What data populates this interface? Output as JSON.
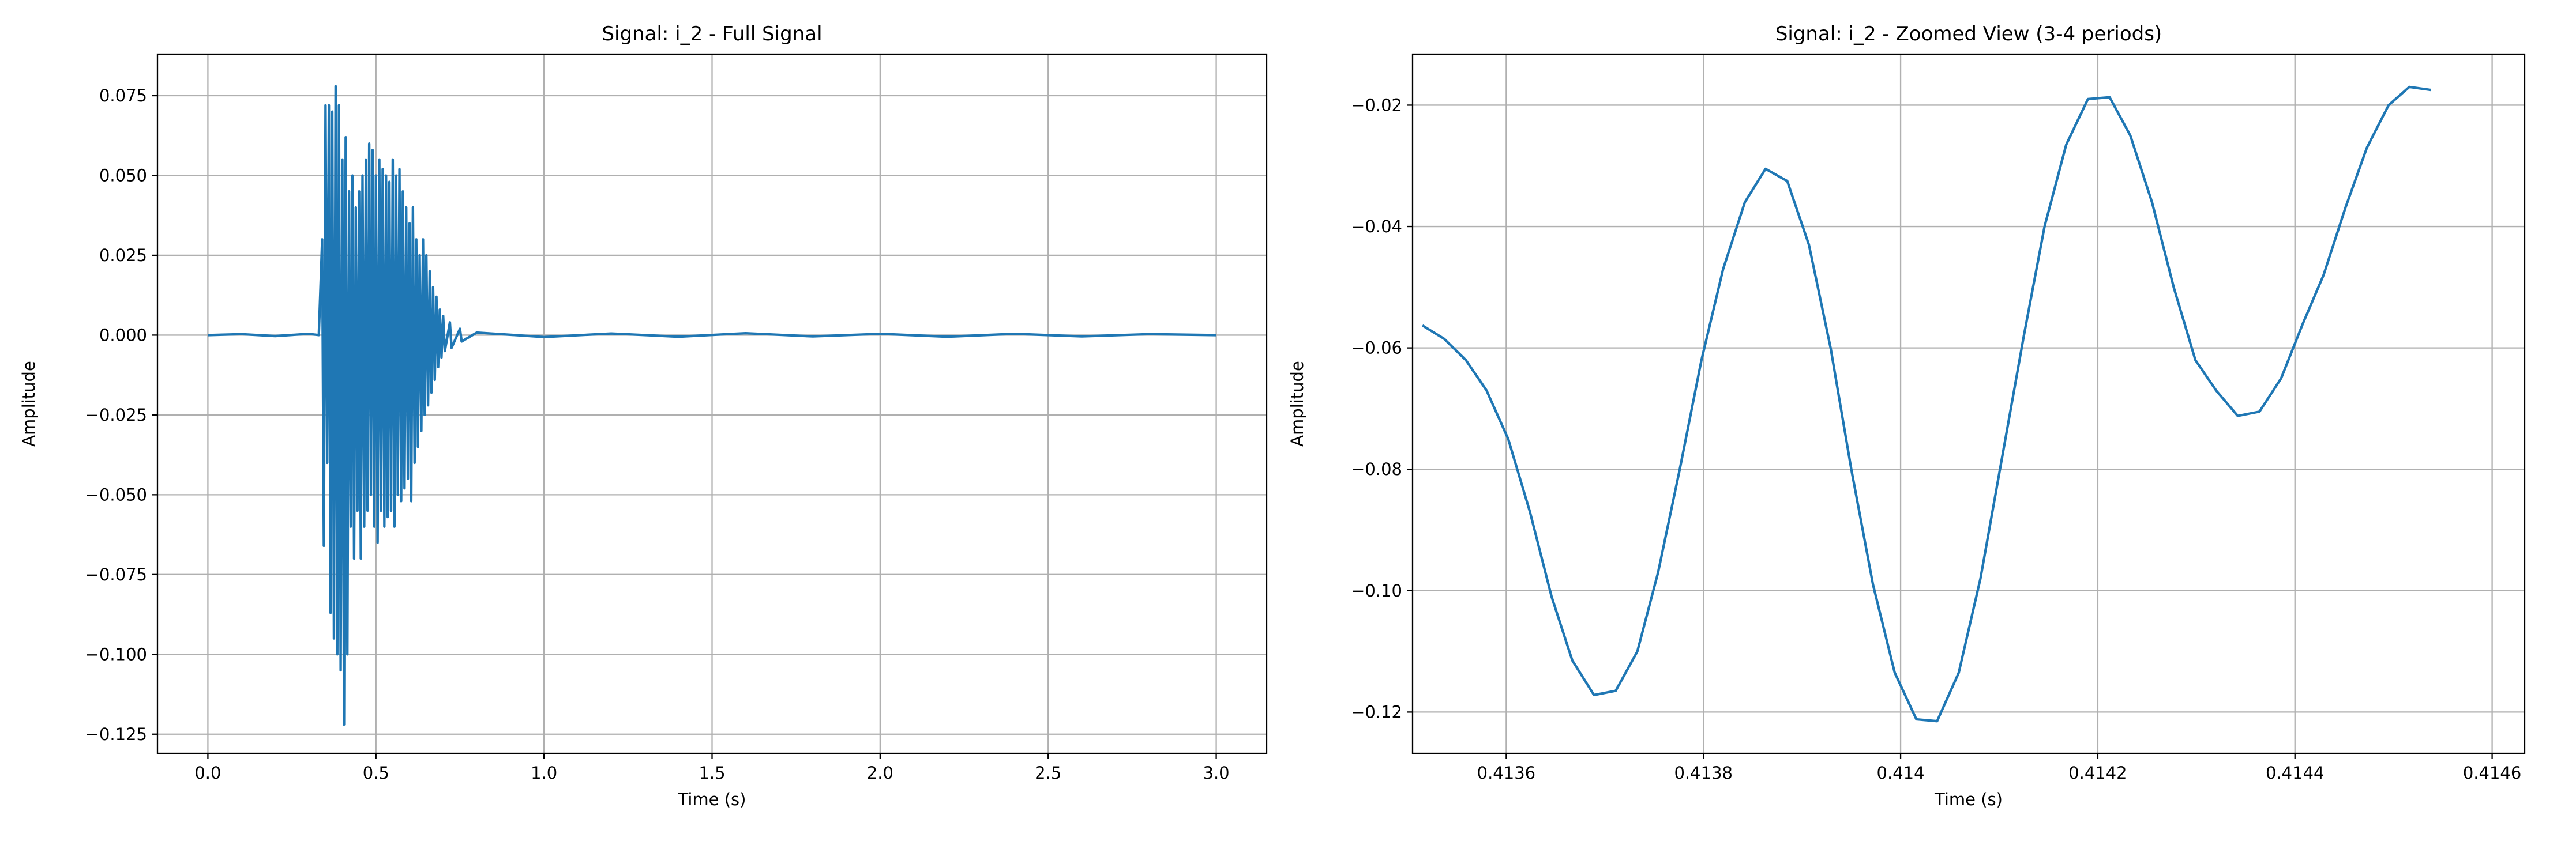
{
  "chart_data": [
    {
      "type": "line",
      "title": "Signal: i_2 - Full Signal",
      "xlabel": "Time (s)",
      "ylabel": "Amplitude",
      "xlim": [
        -0.15,
        3.15
      ],
      "ylim": [
        -0.131,
        0.088
      ],
      "grid": true,
      "xticks": [
        {
          "value": 0,
          "label": "0.0"
        },
        0.5,
        {
          "value": 1,
          "label": "1.0"
        },
        1.5,
        {
          "value": 2,
          "label": "2.0"
        },
        2.5,
        {
          "value": 3,
          "label": "3.0"
        }
      ],
      "yticks": [
        {
          "value": -0.125,
          "label": "−0.125"
        },
        {
          "value": -0.1,
          "label": "−0.100"
        },
        {
          "value": -0.075,
          "label": "−0.075"
        },
        {
          "value": -0.05,
          "label": "−0.050"
        },
        {
          "value": -0.025,
          "label": "−0.025"
        },
        {
          "value": 0,
          "label": "0.000"
        },
        0.025,
        {
          "value": 0.05,
          "label": "0.050"
        },
        0.075
      ],
      "x": [
        0,
        0.1,
        0.2,
        0.3,
        0.33,
        0.34,
        0.345,
        0.35,
        0.355,
        0.36,
        0.365,
        0.37,
        0.375,
        0.38,
        0.385,
        0.39,
        0.395,
        0.4,
        0.405,
        0.41,
        0.415,
        0.42,
        0.425,
        0.43,
        0.435,
        0.44,
        0.445,
        0.45,
        0.455,
        0.46,
        0.465,
        0.47,
        0.475,
        0.48,
        0.485,
        0.49,
        0.495,
        0.5,
        0.505,
        0.51,
        0.515,
        0.52,
        0.525,
        0.53,
        0.535,
        0.54,
        0.545,
        0.55,
        0.555,
        0.56,
        0.565,
        0.57,
        0.575,
        0.58,
        0.585,
        0.59,
        0.595,
        0.6,
        0.605,
        0.61,
        0.615,
        0.62,
        0.625,
        0.63,
        0.635,
        0.64,
        0.645,
        0.65,
        0.655,
        0.66,
        0.665,
        0.67,
        0.675,
        0.68,
        0.685,
        0.69,
        0.695,
        0.7,
        0.705,
        0.72,
        0.725,
        0.75,
        0.755,
        0.8,
        1.0,
        1.2,
        1.4,
        1.6,
        1.8,
        2.0,
        2.2,
        2.4,
        2.6,
        2.8,
        3.0
      ],
      "series": [
        {
          "name": "i_2",
          "color": "#1f77b4",
          "values": [
            0,
            0.0003,
            -0.0003,
            0.0004,
            0,
            0.03,
            -0.066,
            0.072,
            -0.04,
            0.072,
            -0.087,
            0.07,
            -0.095,
            0.078,
            -0.1,
            0.072,
            -0.105,
            0.055,
            -0.122,
            0.062,
            -0.1,
            0.045,
            -0.06,
            0.05,
            -0.07,
            0.04,
            -0.055,
            0.045,
            -0.07,
            0.05,
            -0.06,
            0.055,
            -0.055,
            0.06,
            -0.05,
            0.058,
            -0.06,
            0.05,
            -0.065,
            0.055,
            -0.055,
            0.052,
            -0.06,
            0.05,
            -0.057,
            0.048,
            -0.055,
            0.055,
            -0.06,
            0.05,
            -0.05,
            0.052,
            -0.052,
            0.045,
            -0.048,
            0.04,
            -0.045,
            0.035,
            -0.052,
            0.04,
            -0.04,
            0.03,
            -0.035,
            0.025,
            -0.03,
            0.03,
            -0.025,
            0.025,
            -0.022,
            0.02,
            -0.018,
            0.015,
            -0.014,
            0.012,
            -0.01,
            0.008,
            -0.007,
            0.006,
            -0.005,
            0.004,
            -0.004,
            0.002,
            -0.002,
            0.0008,
            -0.0006,
            0.0005,
            -0.0005,
            0.0006,
            -0.0004,
            0.0004,
            -0.0005,
            0.0004,
            -0.0004,
            0.0003,
            0
          ]
        }
      ]
    },
    {
      "type": "line",
      "title": "Signal: i_2 - Zoomed View (3-4 periods)",
      "xlabel": "Time (s)",
      "ylabel": "Amplitude",
      "xlim": [
        0.413505,
        0.414633
      ],
      "ylim": [
        -0.1268,
        -0.0116
      ],
      "grid": true,
      "xticks": [
        0.4136,
        0.4138,
        0.414,
        0.4142,
        0.4144,
        0.4146
      ],
      "yticks": [
        {
          "value": -0.12,
          "label": "−0.12"
        },
        {
          "value": -0.1,
          "label": "−0.10"
        },
        {
          "value": -0.08,
          "label": "−0.08"
        },
        {
          "value": -0.06,
          "label": "−0.06"
        },
        {
          "value": -0.04,
          "label": "−0.04"
        },
        {
          "value": -0.02,
          "label": "−0.02"
        }
      ],
      "x": [
        0.413515,
        0.413537,
        0.413559,
        0.41358,
        0.413602,
        0.413624,
        0.413646,
        0.413667,
        0.413689,
        0.413711,
        0.413733,
        0.413754,
        0.413776,
        0.413798,
        0.41382,
        0.413842,
        0.413863,
        0.413885,
        0.413907,
        0.413929,
        0.41395,
        0.413972,
        0.413994,
        0.414016,
        0.414037,
        0.414059,
        0.414081,
        0.414103,
        0.414125,
        0.414146,
        0.414168,
        0.41419,
        0.414212,
        0.414233,
        0.414255,
        0.414277,
        0.414299,
        0.41432,
        0.414342,
        0.414364,
        0.414386,
        0.414408,
        0.414429,
        0.414451,
        0.414473,
        0.414495,
        0.414516,
        0.414538
      ],
      "series": [
        {
          "name": "i_2",
          "color": "#1f77b4",
          "values": [
            -0.0563,
            -0.0585,
            -0.062,
            -0.067,
            -0.075,
            -0.087,
            -0.101,
            -0.1115,
            -0.1172,
            -0.1165,
            -0.11,
            -0.097,
            -0.08,
            -0.062,
            -0.047,
            -0.036,
            -0.0305,
            -0.0325,
            -0.043,
            -0.06,
            -0.08,
            -0.099,
            -0.1135,
            -0.1212,
            -0.1215,
            -0.1135,
            -0.098,
            -0.078,
            -0.058,
            -0.04,
            -0.0265,
            -0.019,
            -0.0187,
            -0.025,
            -0.036,
            -0.05,
            -0.062,
            -0.067,
            -0.0712,
            -0.0705,
            -0.065,
            -0.056,
            -0.048,
            -0.037,
            -0.027,
            -0.02,
            -0.017,
            -0.0175
          ]
        }
      ]
    }
  ]
}
